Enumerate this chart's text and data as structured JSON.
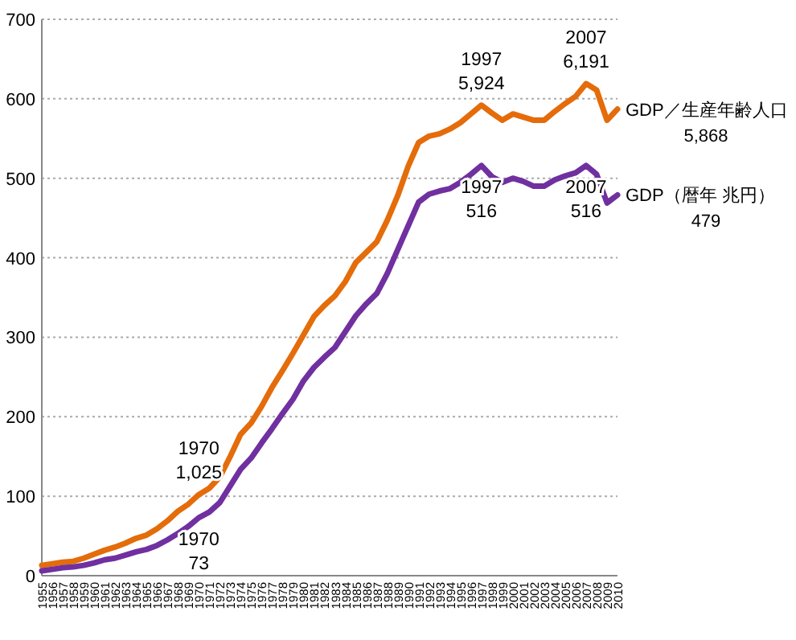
{
  "chart_data": {
    "type": "line",
    "x": [
      1955,
      1956,
      1957,
      1958,
      1959,
      1960,
      1961,
      1962,
      1963,
      1964,
      1965,
      1966,
      1967,
      1968,
      1969,
      1970,
      1971,
      1972,
      1973,
      1974,
      1975,
      1976,
      1977,
      1978,
      1979,
      1980,
      1981,
      1982,
      1983,
      1984,
      1985,
      1986,
      1987,
      1988,
      1989,
      1990,
      1991,
      1992,
      1993,
      1994,
      1995,
      1996,
      1997,
      1998,
      1999,
      2000,
      2001,
      2002,
      2003,
      2004,
      2005,
      2006,
      2007,
      2008,
      2009,
      2010
    ],
    "series": [
      {
        "name": "GDP／生産年齢人口",
        "color": "#e46c0a",
        "values": [
          13,
          15,
          17,
          18,
          22,
          27,
          32,
          36,
          41,
          47,
          51,
          59,
          69,
          81,
          90,
          102,
          110,
          124,
          150,
          178,
          192,
          213,
          237,
          258,
          280,
          303,
          326,
          340,
          352,
          370,
          394,
          407,
          420,
          447,
          478,
          515,
          545,
          553,
          556,
          562,
          570,
          581,
          592,
          582,
          573,
          581,
          577,
          573,
          573,
          584,
          594,
          603,
          619,
          611,
          573,
          587
        ]
      },
      {
        "name": "GDP（暦年  兆円）",
        "color": "#7030a0",
        "values": [
          6,
          8,
          10,
          11,
          13,
          16,
          20,
          22,
          26,
          30,
          33,
          38,
          45,
          53,
          62,
          73,
          80,
          92,
          113,
          134,
          148,
          167,
          185,
          204,
          222,
          245,
          262,
          275,
          287,
          307,
          327,
          342,
          355,
          380,
          410,
          440,
          470,
          480,
          484,
          487,
          495,
          505,
          516,
          502,
          495,
          500,
          496,
          490,
          490,
          498,
          503,
          507,
          516,
          505,
          469,
          479
        ]
      }
    ],
    "xlim": [
      1955,
      2010
    ],
    "xticks": [
      1955,
      1956,
      1957,
      1958,
      1959,
      1960,
      1961,
      1962,
      1963,
      1964,
      1965,
      1966,
      1967,
      1968,
      1969,
      1970,
      1971,
      1972,
      1973,
      1974,
      1975,
      1976,
      1977,
      1978,
      1979,
      1980,
      1981,
      1982,
      1983,
      1984,
      1985,
      1986,
      1987,
      1988,
      1989,
      1990,
      1991,
      1992,
      1993,
      1994,
      1995,
      1996,
      1997,
      1998,
      1999,
      2000,
      2001,
      2002,
      2003,
      2004,
      2005,
      2006,
      2007,
      2008,
      2009,
      2010
    ],
    "ylim": [
      0,
      700
    ],
    "yticks": [
      0,
      100,
      200,
      300,
      400,
      500,
      600,
      700
    ],
    "grid": "y",
    "marker": "none",
    "line_style": "solid",
    "annotations": [
      {
        "text": "1970\n1,025",
        "x": 1970,
        "y": 102
      },
      {
        "text": "1970\n73",
        "x": 1970,
        "y": 73
      },
      {
        "text": "1997\n5,924",
        "x": 1997,
        "y": 592
      },
      {
        "text": "1997\n516",
        "x": 1997,
        "y": 516
      },
      {
        "text": "2007\n6,191",
        "x": 2007,
        "y": 619
      },
      {
        "text": "2007\n516",
        "x": 2007,
        "y": 516
      },
      "5,868",
      "479"
    ]
  }
}
